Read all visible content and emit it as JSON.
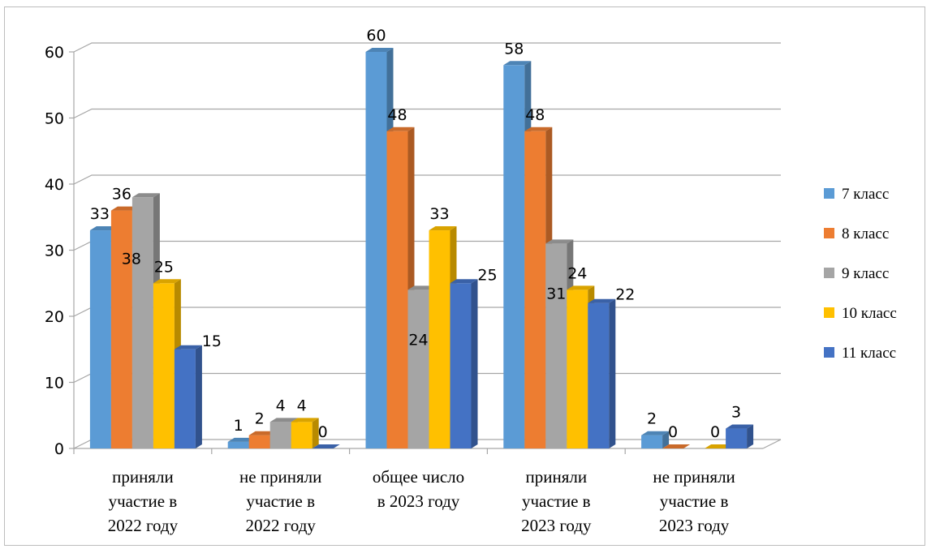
{
  "chart_data": {
    "type": "bar",
    "title": "",
    "xlabel": "",
    "ylabel": "",
    "ylim": [
      0,
      60
    ],
    "yticks": [
      0,
      10,
      20,
      30,
      40,
      50,
      60
    ],
    "grid": true,
    "legend_position": "right",
    "categories": [
      [
        "приняли",
        "участие в",
        "2022 году"
      ],
      [
        "не приняли",
        "участие в",
        "2022 году"
      ],
      [
        "общее число",
        "в 2023 году"
      ],
      [
        "приняли",
        "участие в",
        "2023 году"
      ],
      [
        "не приняли",
        "участие в",
        "2023 году"
      ]
    ],
    "series": [
      {
        "name": "7 класс",
        "color": "#5b9bd5",
        "values": [
          33,
          1,
          60,
          58,
          2
        ]
      },
      {
        "name": "8 класс",
        "color": "#ed7d31",
        "values": [
          36,
          2,
          48,
          48,
          0
        ]
      },
      {
        "name": "9 класс",
        "color": "#a5a5a5",
        "values": [
          38,
          4,
          24,
          31,
          null
        ]
      },
      {
        "name": "10 класс",
        "color": "#ffc000",
        "values": [
          25,
          4,
          33,
          24,
          0
        ]
      },
      {
        "name": "11 класс",
        "color": "#4472c4",
        "values": [
          15,
          0,
          25,
          22,
          3
        ]
      }
    ]
  }
}
